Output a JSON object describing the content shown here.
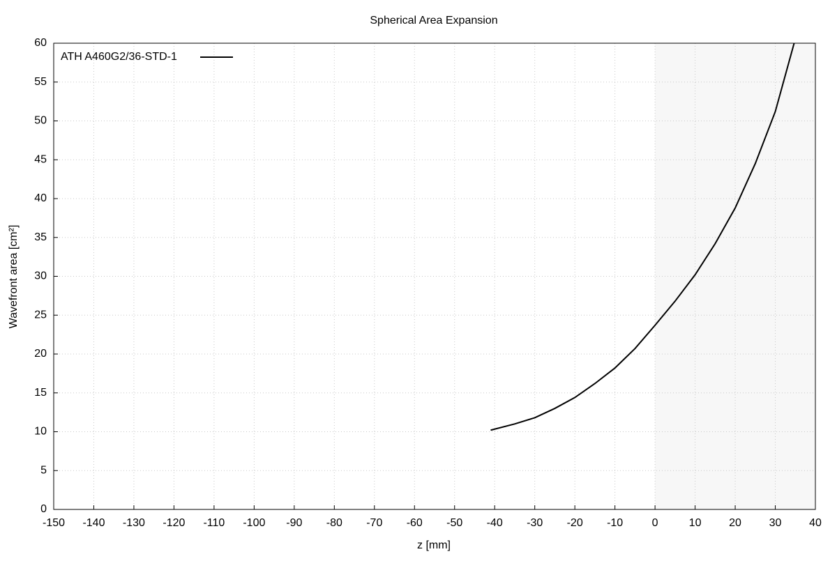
{
  "chart_data": {
    "type": "line",
    "title": "Spherical Area Expansion",
    "xlabel": "z [mm]",
    "ylabel": "Wavefront area [cm²]",
    "x": [
      -41,
      -35,
      -30,
      -25,
      -20,
      -15,
      -10,
      -5,
      0,
      5,
      10,
      15,
      20,
      25,
      30,
      34.7
    ],
    "series": [
      {
        "name": "ATH A460G2/36-STD-1",
        "color": "#000000",
        "values": [
          10.2,
          11.0,
          11.8,
          13.0,
          14.4,
          16.2,
          18.2,
          20.7,
          23.7,
          26.8,
          30.2,
          34.2,
          38.8,
          44.5,
          51.2,
          60
        ]
      }
    ],
    "xlim": [
      -150,
      40
    ],
    "ylim": [
      0,
      60
    ],
    "xticks": [
      -150,
      -140,
      -130,
      -120,
      -110,
      -100,
      -90,
      -80,
      -70,
      -60,
      -50,
      -40,
      -30,
      -20,
      -10,
      0,
      10,
      20,
      30,
      40
    ],
    "yticks": [
      0,
      5,
      10,
      15,
      20,
      25,
      30,
      35,
      40,
      45,
      50,
      55,
      60
    ],
    "shaded_xrange": [
      0,
      40
    ],
    "shade_color": "#f7f7f7",
    "grid": true,
    "legend": "top-left"
  }
}
